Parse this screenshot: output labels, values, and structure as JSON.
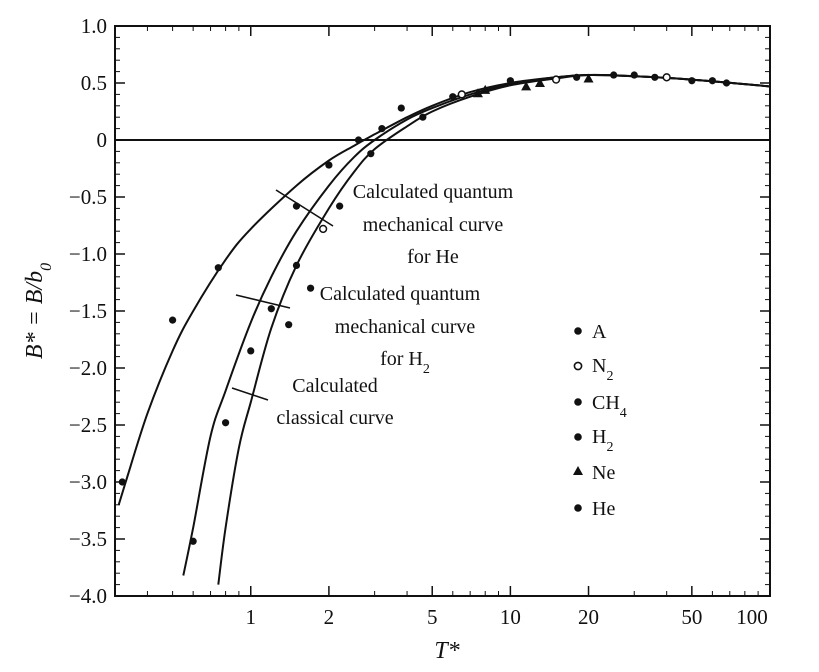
{
  "chart_data": {
    "type": "line",
    "xlabel": "T*",
    "ylabel": "B* = B/b0",
    "x_scale": "log",
    "xlim": [
      0.3,
      100
    ],
    "ylim": [
      -4.0,
      1.0
    ],
    "x_ticks": [
      1,
      2,
      5,
      10,
      20,
      50,
      100
    ],
    "x_tick_labels": [
      "1",
      "2",
      "5",
      "10",
      "20",
      "50",
      "100"
    ],
    "y_ticks": [
      1.0,
      0.5,
      0,
      -0.5,
      -1.0,
      -1.5,
      -2.0,
      -2.5,
      -3.0,
      -3.5,
      -4.0
    ],
    "y_tick_labels": [
      "1.0",
      "0.5",
      "0",
      "-0.5",
      "-1.0",
      "-1.5",
      "-2.0",
      "-2.5",
      "-3.0",
      "-3.5",
      "-4.0"
    ],
    "reference_line_y": 0,
    "series": [
      {
        "key": "quantum_he",
        "x": [
          0.31,
          0.33,
          0.4,
          0.5,
          0.6,
          0.8,
          1.0,
          1.5,
          2.0,
          2.5,
          3.0,
          4.0,
          5.0,
          7.0,
          10,
          15,
          20,
          30,
          50,
          100
        ],
        "y": [
          -3.2,
          -3.0,
          -2.4,
          -1.85,
          -1.5,
          -1.05,
          -0.78,
          -0.4,
          -0.18,
          -0.05,
          0.05,
          0.2,
          0.3,
          0.42,
          0.5,
          0.55,
          0.57,
          0.56,
          0.53,
          0.47
        ]
      },
      {
        "key": "quantum_h2",
        "x": [
          0.55,
          0.6,
          0.7,
          0.8,
          1.0,
          1.2,
          1.5,
          2.0,
          2.5,
          3.0,
          4.0,
          5.0,
          7.0,
          10,
          15,
          20,
          30,
          50,
          100
        ],
        "y": [
          -3.82,
          -3.4,
          -2.6,
          -2.2,
          -1.6,
          -1.2,
          -0.8,
          -0.4,
          -0.15,
          0.0,
          0.18,
          0.28,
          0.4,
          0.49,
          0.55,
          0.57,
          0.56,
          0.53,
          0.47
        ]
      },
      {
        "key": "classical",
        "x": [
          0.75,
          0.8,
          0.9,
          1.0,
          1.2,
          1.5,
          2.0,
          2.5,
          3.0,
          4.0,
          5.0,
          7.0,
          10,
          15,
          20,
          30,
          50,
          100
        ],
        "y": [
          -3.9,
          -3.4,
          -2.7,
          -2.3,
          -1.65,
          -1.1,
          -0.6,
          -0.28,
          -0.08,
          0.12,
          0.25,
          0.38,
          0.48,
          0.54,
          0.57,
          0.56,
          0.53,
          0.47
        ]
      }
    ],
    "points": [
      {
        "x": 0.32,
        "y": -3.0,
        "m": "circle-filled"
      },
      {
        "x": 0.5,
        "y": -1.58,
        "m": "circle-filled"
      },
      {
        "x": 0.6,
        "y": -3.52,
        "m": "circle-filled"
      },
      {
        "x": 0.75,
        "y": -1.12,
        "m": "circle-filled"
      },
      {
        "x": 0.8,
        "y": -2.48,
        "m": "circle-filled"
      },
      {
        "x": 1.0,
        "y": -1.85,
        "m": "circle-filled"
      },
      {
        "x": 1.2,
        "y": -1.48,
        "m": "circle-filled"
      },
      {
        "x": 1.4,
        "y": -1.62,
        "m": "circle-filled"
      },
      {
        "x": 1.5,
        "y": -1.1,
        "m": "circle-filled"
      },
      {
        "x": 1.5,
        "y": -0.58,
        "m": "circle-filled"
      },
      {
        "x": 1.7,
        "y": -1.3,
        "m": "circle-filled"
      },
      {
        "x": 1.9,
        "y": -0.78,
        "m": "circle-open"
      },
      {
        "x": 2.0,
        "y": -0.22,
        "m": "circle-filled"
      },
      {
        "x": 2.2,
        "y": -0.58,
        "m": "circle-filled"
      },
      {
        "x": 2.6,
        "y": 0.0,
        "m": "circle-filled"
      },
      {
        "x": 2.9,
        "y": -0.12,
        "m": "circle-filled"
      },
      {
        "x": 3.2,
        "y": 0.1,
        "m": "circle-filled"
      },
      {
        "x": 3.8,
        "y": 0.28,
        "m": "circle-filled"
      },
      {
        "x": 4.6,
        "y": 0.2,
        "m": "circle-filled"
      },
      {
        "x": 6.0,
        "y": 0.38,
        "m": "circle-filled"
      },
      {
        "x": 6.5,
        "y": 0.4,
        "m": "circle-open"
      },
      {
        "x": 7.5,
        "y": 0.41,
        "m": "triangle"
      },
      {
        "x": 8.0,
        "y": 0.44,
        "m": "triangle"
      },
      {
        "x": 10,
        "y": 0.52,
        "m": "circle-filled"
      },
      {
        "x": 11.5,
        "y": 0.47,
        "m": "triangle"
      },
      {
        "x": 13,
        "y": 0.5,
        "m": "triangle"
      },
      {
        "x": 15,
        "y": 0.53,
        "m": "circle-open"
      },
      {
        "x": 18,
        "y": 0.55,
        "m": "circle-filled"
      },
      {
        "x": 20,
        "y": 0.54,
        "m": "triangle"
      },
      {
        "x": 25,
        "y": 0.57,
        "m": "circle-filled"
      },
      {
        "x": 30,
        "y": 0.57,
        "m": "circle-filled"
      },
      {
        "x": 36,
        "y": 0.55,
        "m": "circle-filled"
      },
      {
        "x": 40,
        "y": 0.55,
        "m": "circle-open"
      },
      {
        "x": 50,
        "y": 0.52,
        "m": "circle-filled"
      },
      {
        "x": 60,
        "y": 0.52,
        "m": "circle-filled"
      },
      {
        "x": 68,
        "y": 0.5,
        "m": "circle-filled"
      }
    ],
    "annotations": [
      {
        "key": "ann_he_1",
        "text": "Calculated quantum"
      },
      {
        "key": "ann_he_2",
        "text": "mechanical curve"
      },
      {
        "key": "ann_he_3",
        "text": "for He"
      },
      {
        "key": "ann_h2_1",
        "text": "Calculated quantum"
      },
      {
        "key": "ann_h2_2",
        "text": "mechanical curve"
      },
      {
        "key": "ann_h2_3",
        "text": "for H"
      },
      {
        "key": "ann_cl_1",
        "text": "Calculated"
      },
      {
        "key": "ann_cl_2",
        "text": "classical curve"
      }
    ],
    "legend": {
      "placement": "lower-right",
      "entries": [
        {
          "label": "A",
          "marker": "circle-filled"
        },
        {
          "label": "N",
          "marker": "circle-open"
        },
        {
          "label": "CH",
          "marker": "circle-filled"
        },
        {
          "label": "H",
          "marker": "circle-filled"
        },
        {
          "label": "Ne",
          "marker": "triangle"
        },
        {
          "label": "He",
          "marker": "circle-filled"
        }
      ]
    },
    "subscripts": {
      "h2_annotation": "2",
      "legend_n2": "2",
      "legend_ch4": "4",
      "legend_h2": "2",
      "ylabel_b0": "0"
    }
  }
}
